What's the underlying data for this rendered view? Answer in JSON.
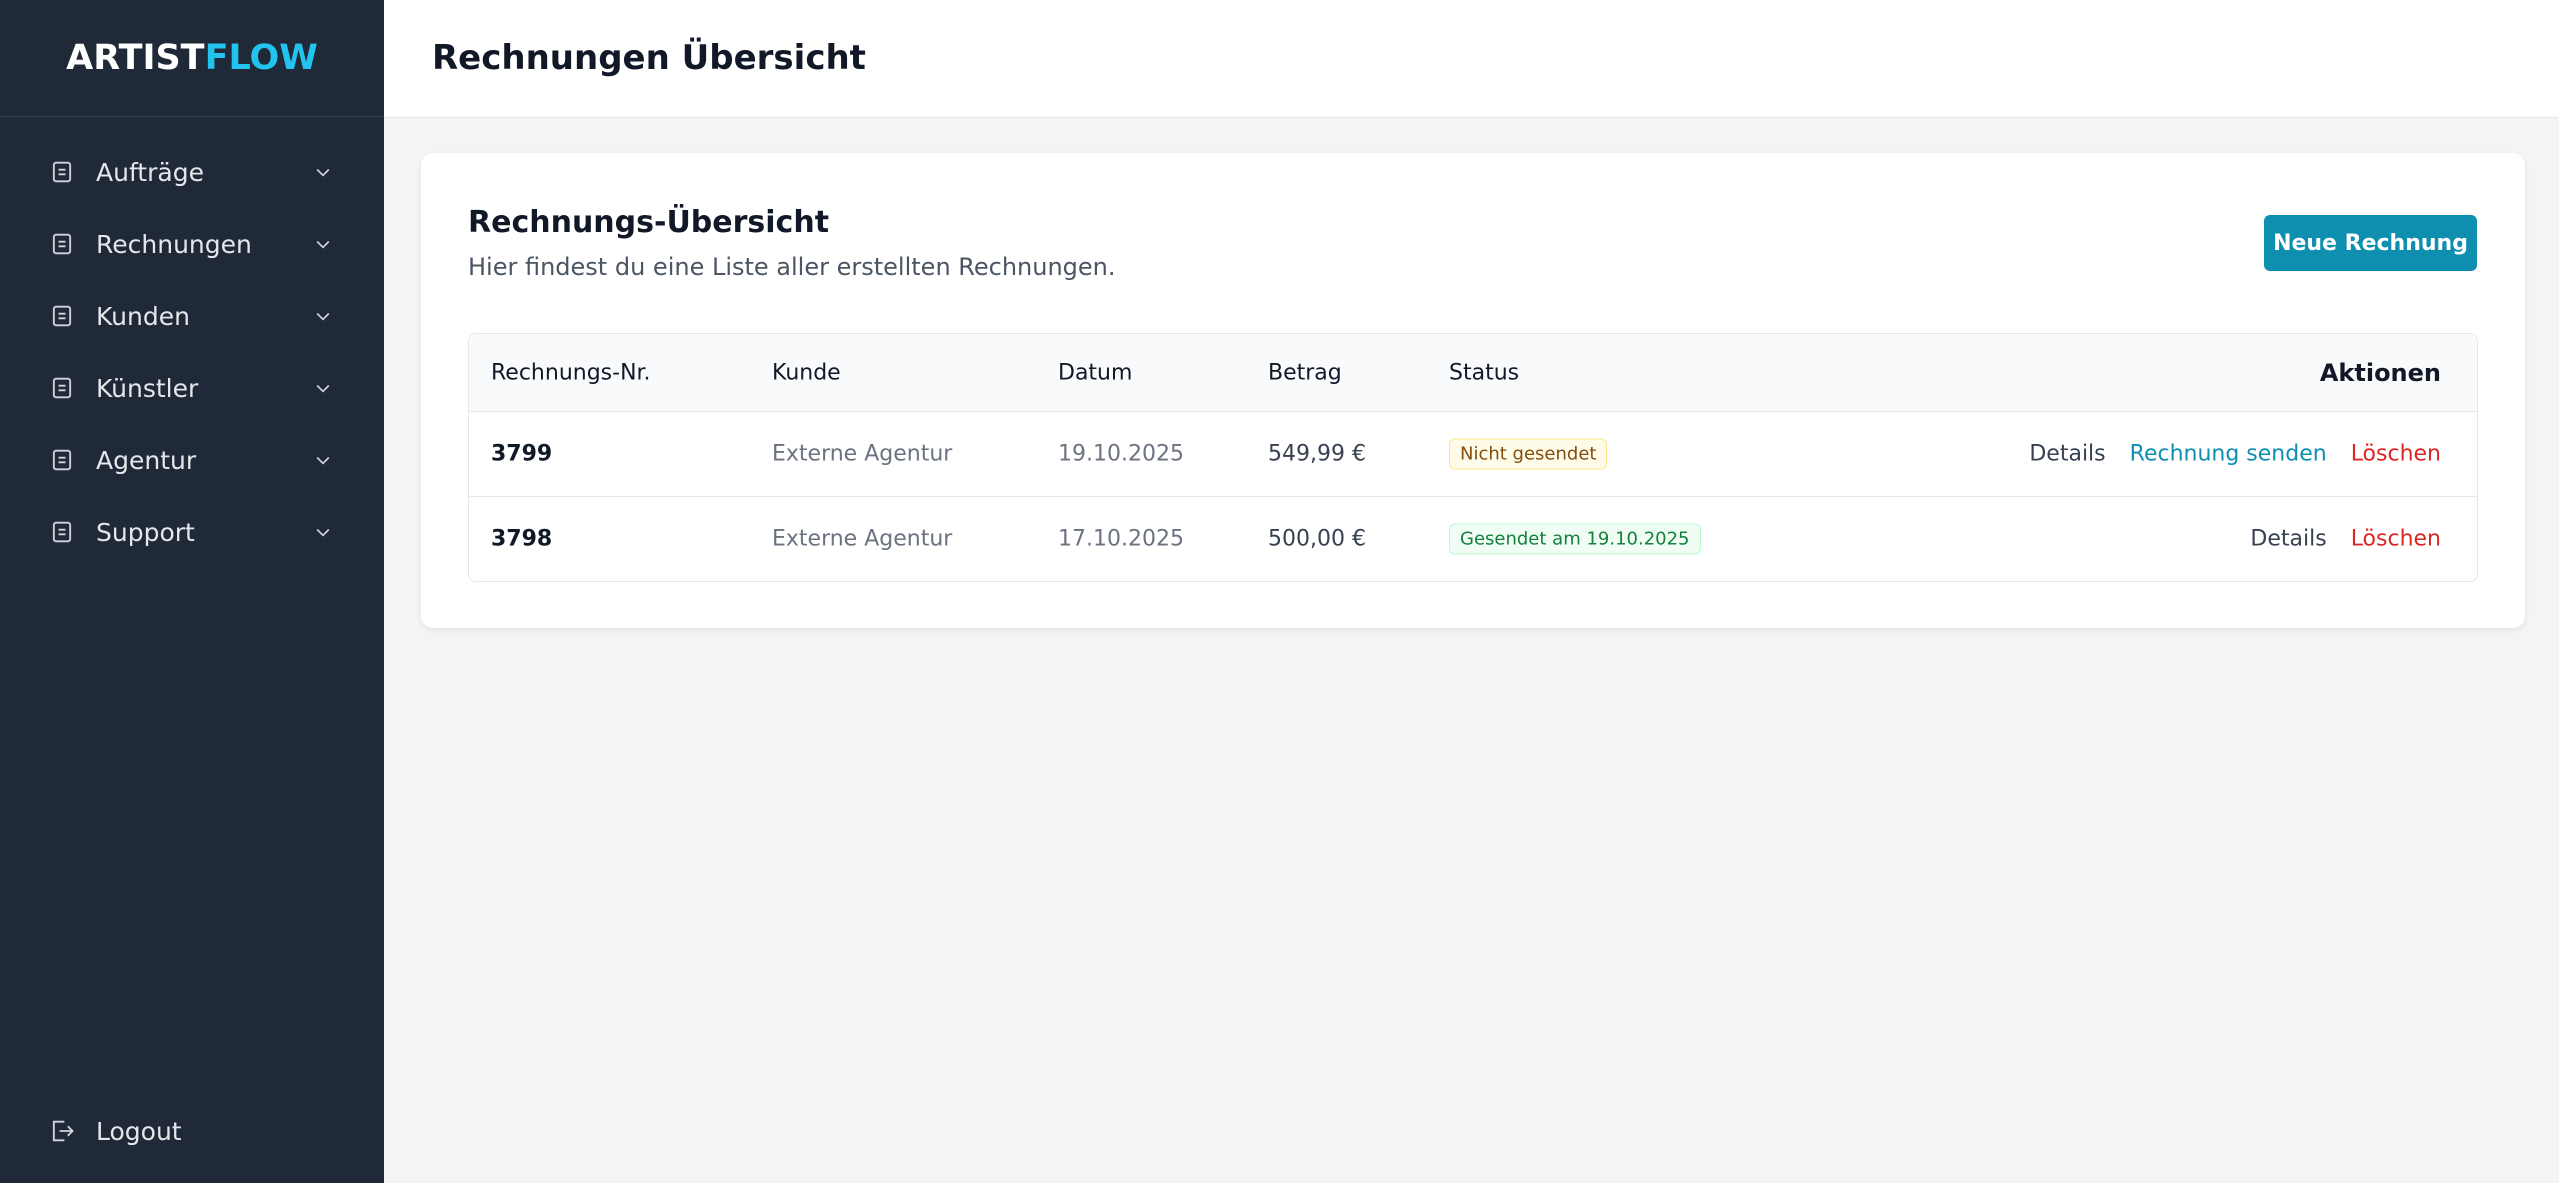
{
  "sidebar": {
    "logo": {
      "part1": "ARTIST",
      "part2": "FLOW"
    },
    "nav": [
      "Aufträge",
      "Rechnungen",
      "Kunden",
      "Künstler",
      "Agentur",
      "Support"
    ],
    "logout": "Logout"
  },
  "header": {
    "title": "Rechnungen Übersicht"
  },
  "card": {
    "title": "Rechnungs-Übersicht",
    "subtitle": "Hier findest du eine Liste aller erstellten Rechnungen.",
    "button": "Neue Rechnung"
  },
  "table": {
    "headers": [
      "Rechnungs-Nr.",
      "Kunde",
      "Datum",
      "Betrag",
      "Status",
      "Aktionen"
    ],
    "rows": [
      [
        "3799",
        "Externe Agentur",
        "19.10.2025",
        "549,99 €",
        "Nicht gesendet"
      ],
      [
        "3798",
        "Externe Agentur",
        "17.10.2025",
        "500,00 €",
        "Gesendet am 19.10.2025"
      ]
    ],
    "actions": [
      [
        "Details",
        "Rechnung senden",
        "Löschen"
      ],
      [
        "Details",
        "Löschen"
      ]
    ]
  }
}
